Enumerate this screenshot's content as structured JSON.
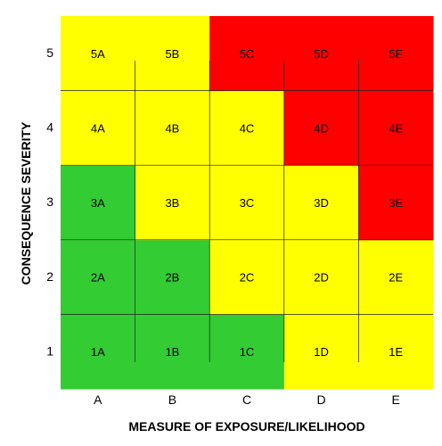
{
  "chart_data": {
    "type": "heatmap",
    "title": "",
    "xlabel": "MEASURE OF EXPOSURE/LIKELIHOOD",
    "ylabel": "CONSEQUENCE SEVERITY",
    "x_categories": [
      "A",
      "B",
      "C",
      "D",
      "E"
    ],
    "y_categories": [
      "1",
      "2",
      "3",
      "4",
      "5"
    ],
    "legend": "none",
    "grid": true,
    "colors": {
      "green": "#33cc33",
      "yellow": "#ffff00",
      "red": "#ff0000"
    },
    "cells": [
      {
        "label": "1A",
        "x": "A",
        "y": "1",
        "color": "green"
      },
      {
        "label": "1B",
        "x": "B",
        "y": "1",
        "color": "green"
      },
      {
        "label": "1C",
        "x": "C",
        "y": "1",
        "color": "green"
      },
      {
        "label": "1D",
        "x": "D",
        "y": "1",
        "color": "yellow"
      },
      {
        "label": "1E",
        "x": "E",
        "y": "1",
        "color": "yellow"
      },
      {
        "label": "2A",
        "x": "A",
        "y": "2",
        "color": "green"
      },
      {
        "label": "2B",
        "x": "B",
        "y": "2",
        "color": "green"
      },
      {
        "label": "2C",
        "x": "C",
        "y": "2",
        "color": "yellow"
      },
      {
        "label": "2D",
        "x": "D",
        "y": "2",
        "color": "yellow"
      },
      {
        "label": "2E",
        "x": "E",
        "y": "2",
        "color": "yellow"
      },
      {
        "label": "3A",
        "x": "A",
        "y": "3",
        "color": "green"
      },
      {
        "label": "3B",
        "x": "B",
        "y": "3",
        "color": "yellow"
      },
      {
        "label": "3C",
        "x": "C",
        "y": "3",
        "color": "yellow"
      },
      {
        "label": "3D",
        "x": "D",
        "y": "3",
        "color": "yellow"
      },
      {
        "label": "3E",
        "x": "E",
        "y": "3",
        "color": "red"
      },
      {
        "label": "4A",
        "x": "A",
        "y": "4",
        "color": "yellow"
      },
      {
        "label": "4B",
        "x": "B",
        "y": "4",
        "color": "yellow"
      },
      {
        "label": "4C",
        "x": "C",
        "y": "4",
        "color": "yellow"
      },
      {
        "label": "4D",
        "x": "D",
        "y": "4",
        "color": "red"
      },
      {
        "label": "4E",
        "x": "E",
        "y": "4",
        "color": "red"
      },
      {
        "label": "5A",
        "x": "A",
        "y": "5",
        "color": "yellow"
      },
      {
        "label": "5B",
        "x": "B",
        "y": "5",
        "color": "yellow"
      },
      {
        "label": "5C",
        "x": "C",
        "y": "5",
        "color": "red"
      },
      {
        "label": "5D",
        "x": "D",
        "y": "5",
        "color": "red"
      },
      {
        "label": "5E",
        "x": "E",
        "y": "5",
        "color": "red"
      }
    ]
  }
}
